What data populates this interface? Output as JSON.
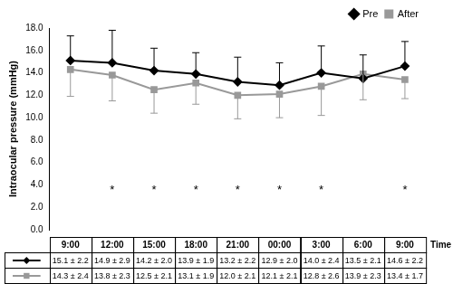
{
  "chart_data": {
    "type": "line",
    "y_label": "Intraocular pressure (mmHg)",
    "x_label": "Time",
    "categories": [
      "9:00",
      "12:00",
      "15:00",
      "18:00",
      "21:00",
      "00:00",
      "3:00",
      "6:00",
      "9:00"
    ],
    "series": [
      {
        "name": "Pre",
        "color": "#000000",
        "marker": "diamond",
        "line_style": "solid",
        "values": [
          15.1,
          14.9,
          14.2,
          13.9,
          13.2,
          12.9,
          14.0,
          13.5,
          14.6
        ],
        "error_plus": [
          2.2,
          2.9,
          2.0,
          1.9,
          2.2,
          2.0,
          2.4,
          2.1,
          2.2
        ]
      },
      {
        "name": "After",
        "color": "#999999",
        "marker": "square",
        "line_style": "solid",
        "values": [
          14.3,
          13.8,
          12.5,
          13.1,
          12.0,
          12.1,
          12.8,
          13.9,
          13.4
        ],
        "error_minus": [
          2.4,
          2.3,
          2.1,
          1.9,
          2.1,
          2.1,
          2.6,
          2.3,
          1.7
        ]
      }
    ],
    "annotations": [
      null,
      "*",
      "*",
      "*",
      "*",
      "*",
      "*",
      null,
      "*"
    ],
    "table": {
      "rows": [
        {
          "series": "Pre",
          "cells": [
            "15.1 ± 2.2",
            "14.9 ± 2.9",
            "14.2 ± 2.0",
            "13.9 ± 1.9",
            "13.2 ± 2.2",
            "12.9 ± 2.0",
            "14.0 ± 2.4",
            "13.5 ± 2.1",
            "14.6 ± 2.2"
          ]
        },
        {
          "series": "After",
          "cells": [
            "14.3 ± 2.4",
            "13.8 ± 2.3",
            "12.5 ± 2.1",
            "13.1 ± 1.9",
            "12.0 ± 2.1",
            "12.1 ± 2.1",
            "12.8 ± 2.6",
            "13.9 ± 2.3",
            "13.4 ± 1.7"
          ]
        }
      ]
    },
    "ylim": [
      0,
      18
    ],
    "yticks": [
      {
        "value": 0,
        "label": "0.0"
      },
      {
        "value": 2,
        "label": "2.0"
      },
      {
        "value": 4,
        "label": "4.0"
      },
      {
        "value": 6,
        "label": "6.0"
      },
      {
        "value": 8,
        "label": "8.0"
      },
      {
        "value": 10,
        "label": "10.0"
      },
      {
        "value": 12,
        "label": "12.0"
      },
      {
        "value": 14,
        "label": "14.0"
      },
      {
        "value": 16,
        "label": "16.0"
      },
      {
        "value": 18,
        "label": "18.0"
      }
    ],
    "grid": false,
    "legend": "top-right"
  }
}
